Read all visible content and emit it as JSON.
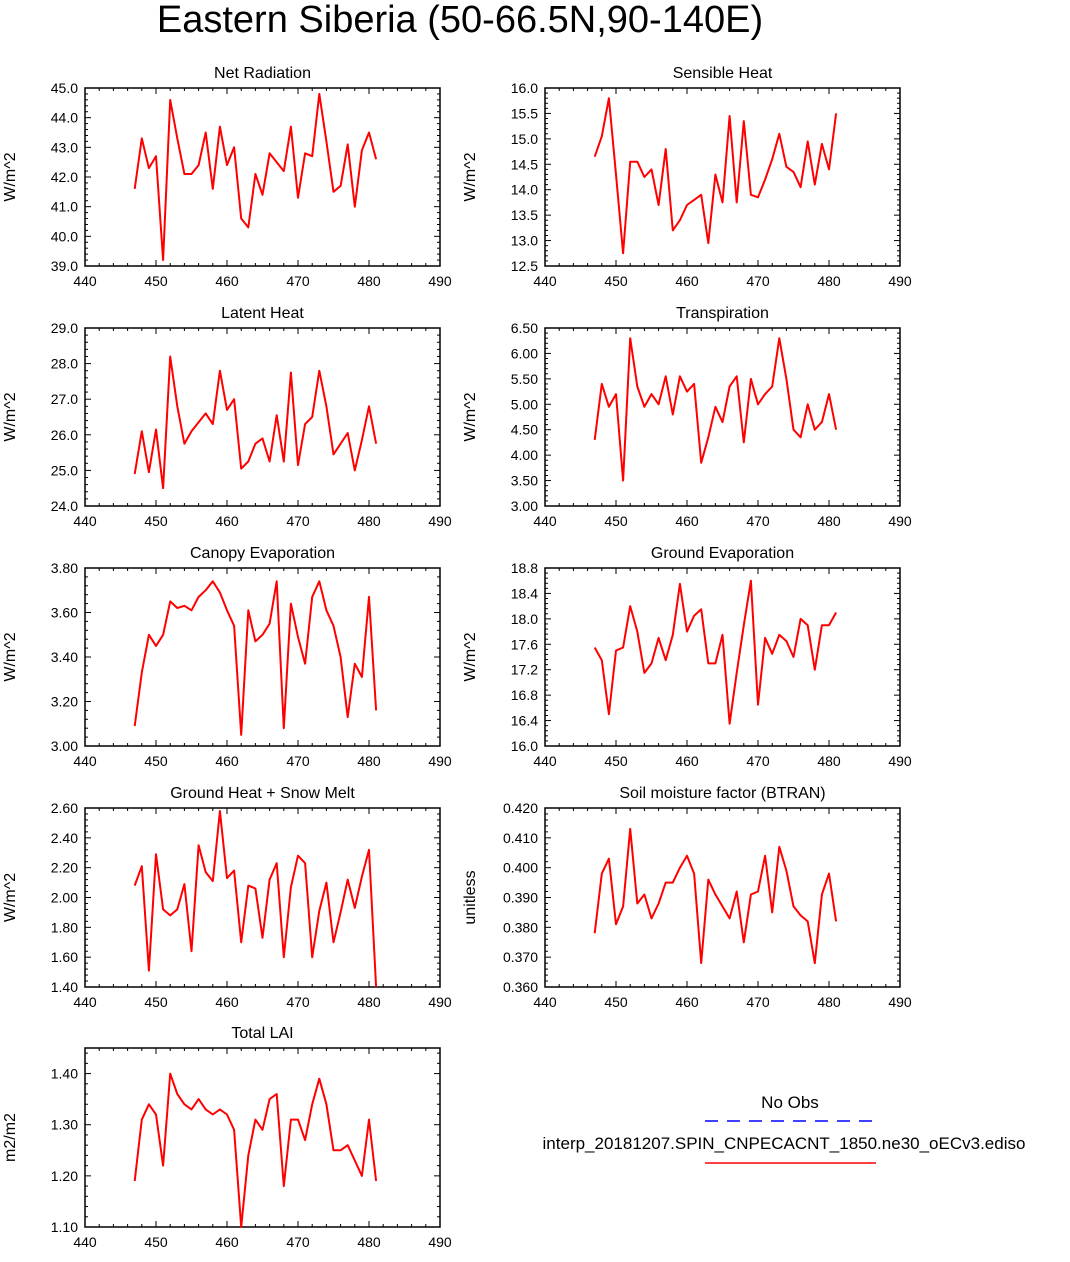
{
  "title": "Eastern Siberia (50-66.5N,90-140E)",
  "colors": {
    "series": "#ff0000",
    "obs": "#0000ff",
    "axis": "#000000"
  },
  "legend": {
    "obs_label": "No Obs",
    "model_label": "interp_20181207.SPIN_CNPECACNT_1850.ne30_oECv3.ediso"
  },
  "chart_data": [
    {
      "type": "line",
      "title": "Net Radiation",
      "ylabel": "W/m^2",
      "xlim": [
        440,
        490
      ],
      "xticks": [
        "440",
        "450",
        "460",
        "470",
        "480",
        "490"
      ],
      "ylim": [
        39,
        45
      ],
      "yticks": [
        "39.0",
        "40.0",
        "41.0",
        "42.0",
        "43.0",
        "44.0",
        "45.0"
      ],
      "x": [
        447,
        448,
        449,
        450,
        451,
        452,
        453,
        454,
        455,
        456,
        457,
        458,
        459,
        460,
        461,
        462,
        463,
        464,
        465,
        466,
        467,
        468,
        469,
        470,
        471,
        472,
        473,
        474,
        475,
        476,
        477,
        478,
        479,
        480,
        481
      ],
      "values": [
        41.6,
        43.3,
        42.3,
        42.7,
        39.2,
        44.6,
        43.3,
        42.1,
        42.1,
        42.4,
        43.5,
        41.6,
        43.7,
        42.4,
        43.0,
        40.6,
        40.3,
        42.1,
        41.4,
        42.8,
        42.5,
        42.2,
        43.7,
        41.3,
        42.8,
        42.7,
        44.8,
        43.2,
        41.5,
        41.7,
        43.1,
        41.0,
        42.9,
        43.5,
        42.6
      ]
    },
    {
      "type": "line",
      "title": "Sensible Heat",
      "ylabel": "W/m^2",
      "xlim": [
        440,
        490
      ],
      "xticks": [
        "440",
        "450",
        "460",
        "470",
        "480",
        "490"
      ],
      "ylim": [
        12.5,
        16
      ],
      "yticks": [
        "12.5",
        "13.0",
        "13.5",
        "14.0",
        "14.5",
        "15.0",
        "15.5",
        "16.0"
      ],
      "x": [
        447,
        448,
        449,
        450,
        451,
        452,
        453,
        454,
        455,
        456,
        457,
        458,
        459,
        460,
        461,
        462,
        463,
        464,
        465,
        466,
        467,
        468,
        469,
        470,
        471,
        472,
        473,
        474,
        475,
        476,
        477,
        478,
        479,
        480,
        481
      ],
      "values": [
        14.65,
        15.05,
        15.8,
        14.3,
        12.75,
        14.55,
        14.55,
        14.25,
        14.4,
        13.7,
        14.8,
        13.2,
        13.4,
        13.7,
        13.8,
        13.9,
        12.95,
        14.3,
        13.75,
        15.45,
        13.75,
        15.35,
        13.9,
        13.85,
        14.2,
        14.6,
        15.1,
        14.45,
        14.35,
        14.05,
        14.95,
        14.1,
        14.9,
        14.4,
        15.5
      ]
    },
    {
      "type": "line",
      "title": "Latent Heat",
      "ylabel": "W/m^2",
      "xlim": [
        440,
        490
      ],
      "xticks": [
        "440",
        "450",
        "460",
        "470",
        "480",
        "490"
      ],
      "ylim": [
        24,
        29
      ],
      "yticks": [
        "24.0",
        "25.0",
        "26.0",
        "27.0",
        "28.0",
        "29.0"
      ],
      "x": [
        447,
        448,
        449,
        450,
        451,
        452,
        453,
        454,
        455,
        456,
        457,
        458,
        459,
        460,
        461,
        462,
        463,
        464,
        465,
        466,
        467,
        468,
        469,
        470,
        471,
        472,
        473,
        474,
        475,
        476,
        477,
        478,
        479,
        480,
        481
      ],
      "values": [
        24.9,
        26.1,
        24.95,
        26.15,
        24.5,
        28.2,
        26.8,
        25.75,
        26.1,
        26.35,
        26.6,
        26.3,
        27.8,
        26.7,
        27.0,
        25.05,
        25.25,
        25.75,
        25.9,
        25.25,
        26.55,
        25.25,
        27.75,
        25.15,
        26.3,
        26.5,
        27.8,
        26.8,
        25.45,
        25.75,
        26.05,
        25.0,
        25.85,
        26.8,
        25.75
      ]
    },
    {
      "type": "line",
      "title": "Transpiration",
      "ylabel": "W/m^2",
      "xlim": [
        440,
        490
      ],
      "xticks": [
        "440",
        "450",
        "460",
        "470",
        "480",
        "490"
      ],
      "ylim": [
        3,
        6.5
      ],
      "yticks": [
        "3.00",
        "3.50",
        "4.00",
        "4.50",
        "5.00",
        "5.50",
        "6.00",
        "6.50"
      ],
      "x": [
        447,
        448,
        449,
        450,
        451,
        452,
        453,
        454,
        455,
        456,
        457,
        458,
        459,
        460,
        461,
        462,
        463,
        464,
        465,
        466,
        467,
        468,
        469,
        470,
        471,
        472,
        473,
        474,
        475,
        476,
        477,
        478,
        479,
        480,
        481
      ],
      "values": [
        4.3,
        5.4,
        4.95,
        5.2,
        3.5,
        6.3,
        5.35,
        4.95,
        5.2,
        5.0,
        5.55,
        4.8,
        5.55,
        5.25,
        5.4,
        3.85,
        4.35,
        4.95,
        4.65,
        5.35,
        5.55,
        4.25,
        5.5,
        5.0,
        5.2,
        5.35,
        6.3,
        5.5,
        4.5,
        4.35,
        5.0,
        4.5,
        4.65,
        5.2,
        4.5
      ]
    },
    {
      "type": "line",
      "title": "Canopy Evaporation",
      "ylabel": "W/m^2",
      "xlim": [
        440,
        490
      ],
      "xticks": [
        "440",
        "450",
        "460",
        "470",
        "480",
        "490"
      ],
      "ylim": [
        3.0,
        3.8
      ],
      "yticks": [
        "3.00",
        "3.20",
        "3.40",
        "3.60",
        "3.80"
      ],
      "x": [
        447,
        448,
        449,
        450,
        451,
        452,
        453,
        454,
        455,
        456,
        457,
        458,
        459,
        460,
        461,
        462,
        463,
        464,
        465,
        466,
        467,
        468,
        469,
        470,
        471,
        472,
        473,
        474,
        475,
        476,
        477,
        478,
        479,
        480,
        481
      ],
      "values": [
        3.09,
        3.33,
        3.5,
        3.45,
        3.5,
        3.65,
        3.62,
        3.63,
        3.61,
        3.67,
        3.7,
        3.74,
        3.69,
        3.61,
        3.54,
        3.05,
        3.61,
        3.47,
        3.5,
        3.55,
        3.74,
        3.08,
        3.64,
        3.49,
        3.37,
        3.67,
        3.74,
        3.61,
        3.54,
        3.4,
        3.13,
        3.37,
        3.31,
        3.67,
        3.16
      ]
    },
    {
      "type": "line",
      "title": "Ground Evaporation",
      "ylabel": "W/m^2",
      "xlim": [
        440,
        490
      ],
      "xticks": [
        "440",
        "450",
        "460",
        "470",
        "480",
        "490"
      ],
      "ylim": [
        16.0,
        18.8
      ],
      "yticks": [
        "16.0",
        "16.4",
        "16.8",
        "17.2",
        "17.6",
        "18.0",
        "18.4",
        "18.8"
      ],
      "x": [
        447,
        448,
        449,
        450,
        451,
        452,
        453,
        454,
        455,
        456,
        457,
        458,
        459,
        460,
        461,
        462,
        463,
        464,
        465,
        466,
        467,
        468,
        469,
        470,
        471,
        472,
        473,
        474,
        475,
        476,
        477,
        478,
        479,
        480,
        481
      ],
      "values": [
        17.55,
        17.35,
        16.5,
        17.5,
        17.55,
        18.2,
        17.8,
        17.15,
        17.3,
        17.7,
        17.35,
        17.75,
        18.55,
        17.8,
        18.05,
        18.15,
        17.3,
        17.3,
        17.75,
        16.35,
        17.15,
        17.9,
        18.6,
        16.65,
        17.7,
        17.45,
        17.75,
        17.65,
        17.4,
        18.0,
        17.9,
        17.2,
        17.9,
        17.9,
        18.1
      ]
    },
    {
      "type": "line",
      "title": "Ground Heat + Snow Melt",
      "ylabel": "W/m^2",
      "xlim": [
        440,
        490
      ],
      "xticks": [
        "440",
        "450",
        "460",
        "470",
        "480",
        "490"
      ],
      "ylim": [
        1.4,
        2.6
      ],
      "yticks": [
        "1.40",
        "1.60",
        "1.80",
        "2.00",
        "2.20",
        "2.40",
        "2.60"
      ],
      "x": [
        447,
        448,
        449,
        450,
        451,
        452,
        453,
        454,
        455,
        456,
        457,
        458,
        459,
        460,
        461,
        462,
        463,
        464,
        465,
        466,
        467,
        468,
        469,
        470,
        471,
        472,
        473,
        474,
        475,
        476,
        477,
        478,
        479,
        480,
        481
      ],
      "values": [
        2.08,
        2.21,
        1.51,
        2.29,
        1.92,
        1.88,
        1.92,
        2.09,
        1.64,
        2.35,
        2.17,
        2.11,
        2.58,
        2.13,
        2.18,
        1.7,
        2.08,
        2.06,
        1.73,
        2.12,
        2.23,
        1.6,
        2.07,
        2.28,
        2.23,
        1.6,
        1.91,
        2.1,
        1.7,
        1.9,
        2.12,
        1.93,
        2.14,
        2.32,
        1.4
      ]
    },
    {
      "type": "line",
      "title": "Soil moisture factor (BTRAN)",
      "ylabel": "unitless",
      "xlim": [
        440,
        490
      ],
      "xticks": [
        "440",
        "450",
        "460",
        "470",
        "480",
        "490"
      ],
      "ylim": [
        0.36,
        0.42
      ],
      "yticks": [
        "0.360",
        "0.370",
        "0.380",
        "0.390",
        "0.400",
        "0.410",
        "0.420"
      ],
      "x": [
        447,
        448,
        449,
        450,
        451,
        452,
        453,
        454,
        455,
        456,
        457,
        458,
        459,
        460,
        461,
        462,
        463,
        464,
        465,
        466,
        467,
        468,
        469,
        470,
        471,
        472,
        473,
        474,
        475,
        476,
        477,
        478,
        479,
        480,
        481
      ],
      "values": [
        0.378,
        0.398,
        0.403,
        0.381,
        0.387,
        0.413,
        0.388,
        0.391,
        0.383,
        0.388,
        0.395,
        0.395,
        0.4,
        0.404,
        0.398,
        0.368,
        0.396,
        0.391,
        0.387,
        0.383,
        0.392,
        0.375,
        0.391,
        0.392,
        0.404,
        0.385,
        0.407,
        0.399,
        0.387,
        0.384,
        0.382,
        0.368,
        0.391,
        0.398,
        0.382
      ]
    },
    {
      "type": "line",
      "title": "Total LAI",
      "ylabel": "m2/m2",
      "xlim": [
        440,
        490
      ],
      "xticks": [
        "440",
        "450",
        "460",
        "470",
        "480",
        "490"
      ],
      "ylim": [
        1.1,
        1.45
      ],
      "yticks": [
        "1.10",
        "1.20",
        "1.30",
        "1.40"
      ],
      "x": [
        447,
        448,
        449,
        450,
        451,
        452,
        453,
        454,
        455,
        456,
        457,
        458,
        459,
        460,
        461,
        462,
        463,
        464,
        465,
        466,
        467,
        468,
        469,
        470,
        471,
        472,
        473,
        474,
        475,
        476,
        477,
        478,
        479,
        480,
        481
      ],
      "values": [
        1.19,
        1.31,
        1.34,
        1.32,
        1.22,
        1.4,
        1.36,
        1.34,
        1.33,
        1.35,
        1.33,
        1.32,
        1.33,
        1.32,
        1.29,
        1.1,
        1.24,
        1.31,
        1.29,
        1.35,
        1.36,
        1.18,
        1.31,
        1.31,
        1.27,
        1.34,
        1.39,
        1.34,
        1.25,
        1.25,
        1.26,
        1.23,
        1.2,
        1.31,
        1.19
      ]
    }
  ]
}
